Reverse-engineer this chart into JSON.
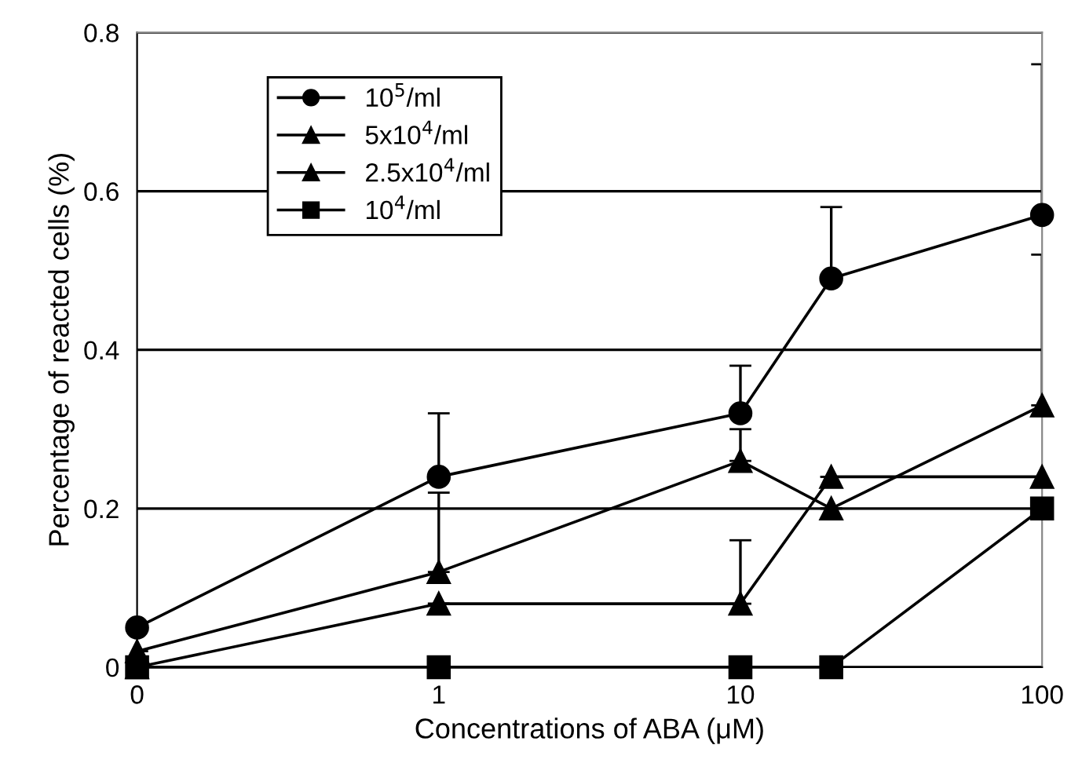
{
  "chart_data": {
    "type": "line",
    "xlabel": "Concentrations of ABA (μM)",
    "ylabel": "Percentage of reacted cells (%)",
    "x": [
      0.1,
      1,
      10,
      20,
      100
    ],
    "log": "x",
    "xlim": [
      0.1,
      100
    ],
    "xticks": [
      {
        "value": 0.1,
        "label": "0"
      },
      1,
      10,
      100
    ],
    "ylim": [
      0,
      0.8
    ],
    "yticks": [
      0,
      0.2,
      0.4,
      0.6,
      0.8
    ],
    "grid": "y",
    "legend": "top left",
    "line_style": "solid",
    "series": [
      {
        "name": "10$^{5}$/ml",
        "color": "#000000",
        "marker": "circle",
        "values": [
          0.05,
          0.24,
          0.32,
          0.49,
          0.57
        ],
        "errors": [
          null,
          [
            0.24,
            0.32
          ],
          [
            0.32,
            0.38
          ],
          [
            0.49,
            0.58
          ],
          [
            0.57,
            0.76
          ]
        ]
      },
      {
        "name": "5x10$^{4}$/ml",
        "color": "#000000",
        "marker": "triangle",
        "values": [
          0.02,
          0.12,
          0.26,
          0.2,
          0.33
        ],
        "errors": [
          null,
          [
            0.12,
            0.22
          ],
          [
            0.26,
            0.3
          ],
          null,
          [
            0.33,
            0.52
          ]
        ]
      },
      {
        "name": "2.5x10$^{4}$/ml",
        "color": "#000000",
        "marker": "triangle",
        "values": [
          0,
          0.08,
          0.08,
          0.24,
          0.24
        ],
        "errors": [
          null,
          null,
          [
            0.08,
            0.16
          ],
          null,
          null
        ]
      },
      {
        "name": "10$^{4}$/ml",
        "color": "#000000",
        "marker": "square",
        "values": [
          0,
          0,
          0,
          0,
          0.2
        ]
      }
    ]
  }
}
